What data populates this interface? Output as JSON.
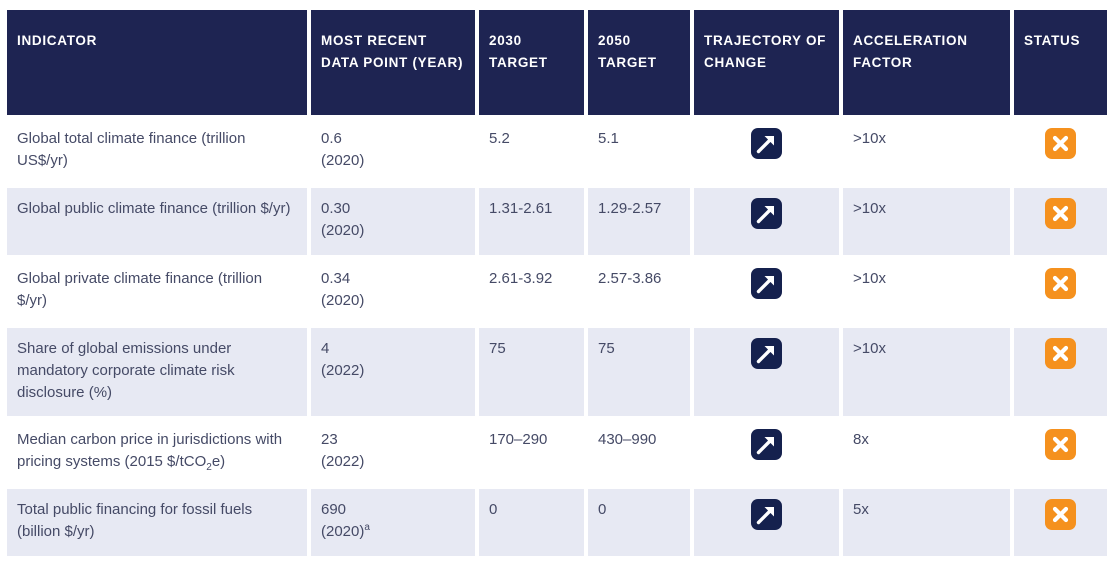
{
  "colors": {
    "header_bg": "#1e2452",
    "header_text": "#ffffff",
    "row_bg": "#ffffff",
    "row_alt_bg": "#e7e9f3",
    "body_text": "#454a66",
    "trajectory_icon_bg": "#15214e",
    "status_icon_bg": "#f5911e",
    "icon_glyph": "#ffffff"
  },
  "icons": {
    "trajectory_up_icon": "↗",
    "status_off_track_icon": "✕"
  },
  "chart_data": {
    "type": "table",
    "columns": [
      "INDICATOR",
      "MOST RECENT DATA POINT (YEAR)",
      "2030 TARGET",
      "2050 TARGET",
      "TRAJECTORY OF CHANGE",
      "ACCELERATION FACTOR",
      "STATUS"
    ],
    "rows": [
      {
        "indicator": "Global total climate finance (trillion US$/yr)",
        "most_recent_value": "0.6",
        "most_recent_year": "(2020)",
        "target_2030": "5.2",
        "target_2050": "5.1",
        "trajectory_of_change": "increasing",
        "acceleration_factor": ">10x",
        "status": "off-track"
      },
      {
        "indicator": "Global public climate finance (trillion $/yr)",
        "most_recent_value": "0.30",
        "most_recent_year": "(2020)",
        "target_2030": "1.31-2.61",
        "target_2050": "1.29-2.57",
        "trajectory_of_change": "increasing",
        "acceleration_factor": ">10x",
        "status": "off-track"
      },
      {
        "indicator": "Global private climate finance (trillion $/yr)",
        "most_recent_value": "0.34",
        "most_recent_year": "(2020)",
        "target_2030": "2.61-3.92",
        "target_2050": "2.57-3.86",
        "trajectory_of_change": "increasing",
        "acceleration_factor": ">10x",
        "status": "off-track"
      },
      {
        "indicator": "Share of global emissions under mandatory corporate climate risk disclosure (%)",
        "most_recent_value": "4",
        "most_recent_year": "(2022)",
        "target_2030": "75",
        "target_2050": "75",
        "trajectory_of_change": "increasing",
        "acceleration_factor": ">10x",
        "status": "off-track"
      },
      {
        "indicator_rich": [
          {
            "t": "Median carbon price in jurisdictions with pricing systems (2015 $/tCO"
          },
          {
            "t": "2",
            "sub": true
          },
          {
            "t": "e)"
          }
        ],
        "most_recent_value": "23",
        "most_recent_year": "(2022)",
        "target_2030": "170–290",
        "target_2050": "430–990",
        "trajectory_of_change": "increasing",
        "acceleration_factor": "8x",
        "status": "off-track"
      },
      {
        "indicator": "Total public financing for fossil fuels (billion $/yr)",
        "most_recent_value": "690",
        "most_recent_year_rich": [
          {
            "t": "(2020)"
          },
          {
            "t": "a",
            "sup": true
          }
        ],
        "target_2030": "0",
        "target_2050": "0",
        "trajectory_of_change": "increasing",
        "acceleration_factor": "5x",
        "status": "off-track"
      }
    ]
  }
}
